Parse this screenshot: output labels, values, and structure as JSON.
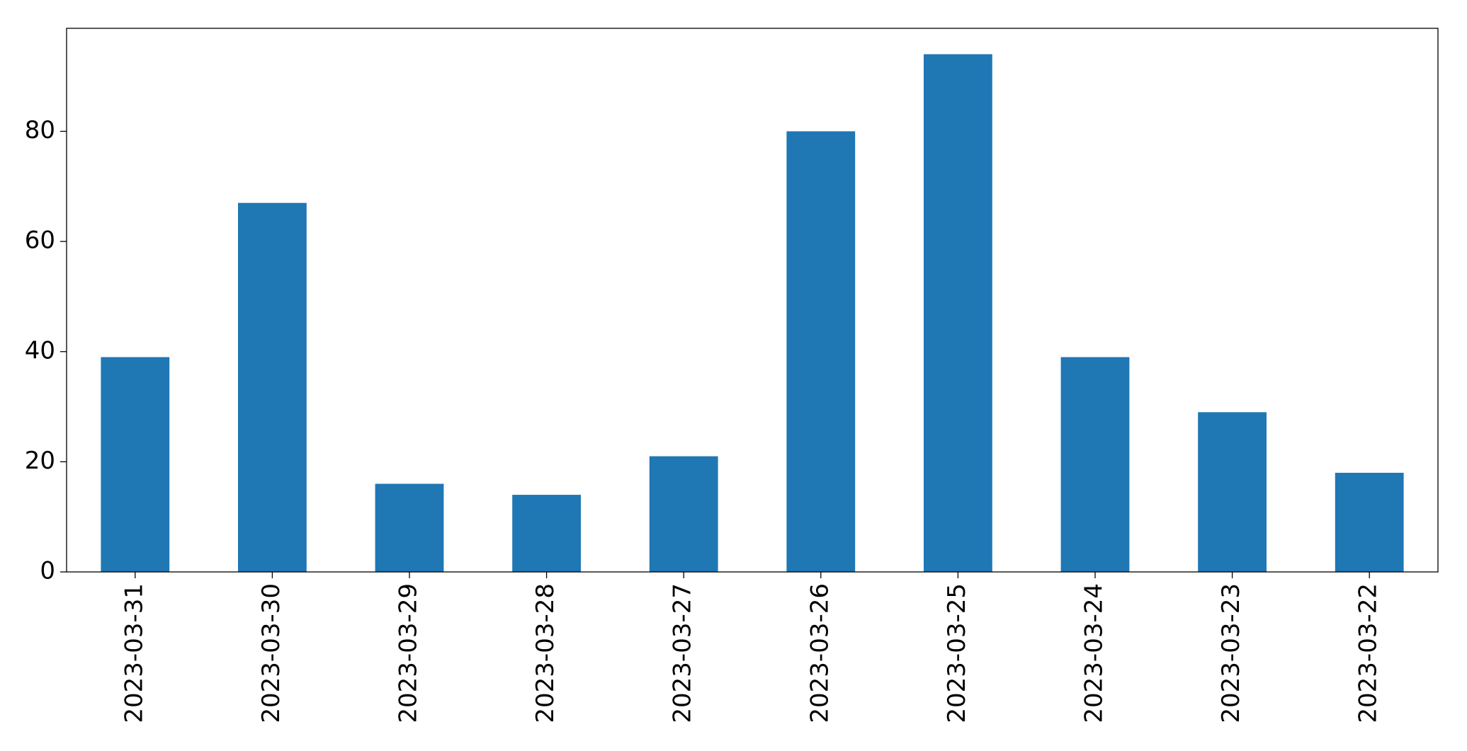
{
  "chart_data": {
    "type": "bar",
    "categories": [
      "2023-03-31",
      "2023-03-30",
      "2023-03-29",
      "2023-03-28",
      "2023-03-27",
      "2023-03-26",
      "2023-03-25",
      "2023-03-24",
      "2023-03-23",
      "2023-03-22"
    ],
    "values": [
      39,
      67,
      16,
      14,
      21,
      80,
      94,
      39,
      29,
      18
    ],
    "color": "#1f77b4",
    "ylim": [
      0,
      98.7
    ],
    "yticks": [
      0,
      20,
      40,
      60,
      80
    ],
    "grid": false
  }
}
